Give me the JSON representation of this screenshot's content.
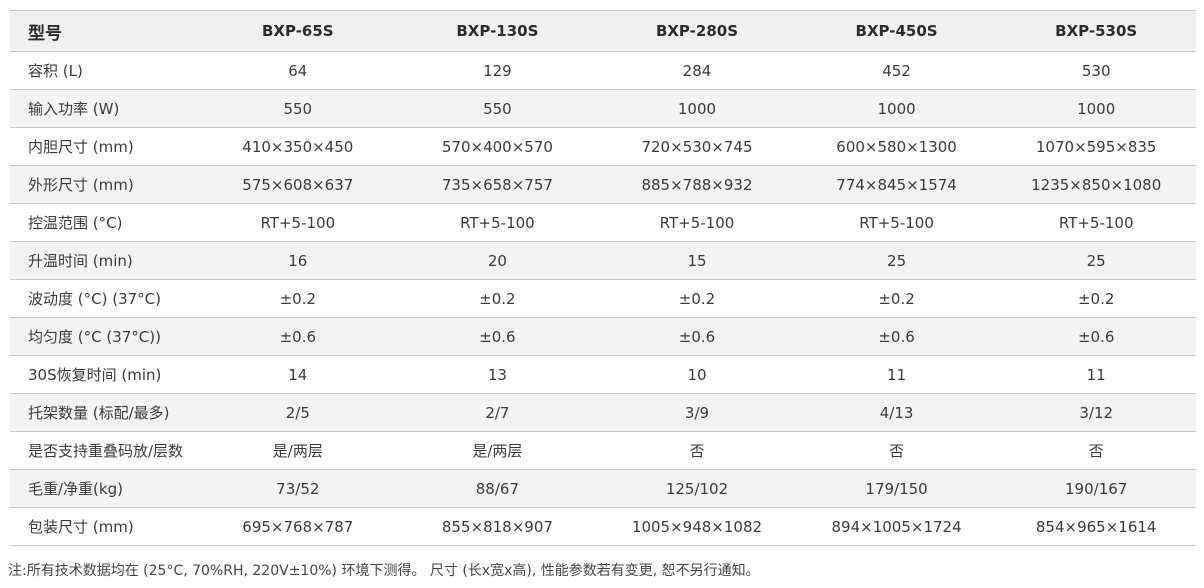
{
  "table": {
    "header": [
      "型号",
      "BXP-65S",
      "BXP-130S",
      "BXP-280S",
      "BXP-450S",
      "BXP-530S"
    ],
    "rows": [
      [
        "容积 (L)",
        "64",
        "129",
        "284",
        "452",
        "530"
      ],
      [
        "输入功率 (W)",
        "550",
        "550",
        "1000",
        "1000",
        "1000"
      ],
      [
        "内胆尺寸 (mm)",
        "410×350×450",
        "570×400×570",
        "720×530×745",
        "600×580×1300",
        "1070×595×835"
      ],
      [
        "外形尺寸 (mm)",
        "575×608×637",
        "735×658×757",
        "885×788×932",
        "774×845×1574",
        "1235×850×1080"
      ],
      [
        "控温范围 (°C)",
        "RT+5-100",
        "RT+5-100",
        "RT+5-100",
        "RT+5-100",
        "RT+5-100"
      ],
      [
        "升温时间 (min)",
        "16",
        "20",
        "15",
        "25",
        "25"
      ],
      [
        "波动度 (°C) (37°C)",
        "±0.2",
        "±0.2",
        "±0.2",
        "±0.2",
        "±0.2"
      ],
      [
        "均匀度 (°C (37°C))",
        "±0.6",
        "±0.6",
        "±0.6",
        "±0.6",
        "±0.6"
      ],
      [
        "30S恢复时间 (min)",
        "14",
        "13",
        "10",
        "11",
        "11"
      ],
      [
        "托架数量 (标配/最多)",
        "2/5",
        "2/7",
        "3/9",
        "4/13",
        "3/12"
      ],
      [
        "是否支持重叠码放/层数",
        "是/两层",
        "是/两层",
        "否",
        "否",
        "否"
      ],
      [
        "毛重/净重(kg)",
        "73/52",
        "88/67",
        "125/102",
        "179/150",
        "190/167"
      ],
      [
        "包装尺寸 (mm)",
        "695×768×787",
        "855×818×907",
        "1005×948×1082",
        "894×1005×1724",
        "854×965×1614"
      ]
    ]
  },
  "note": "注:所有技术数据均在 (25°C, 70%RH, 220V±10%) 环境下测得。  尺寸 (长x宽x高), 性能参数若有变更, 恕不另行通知。"
}
